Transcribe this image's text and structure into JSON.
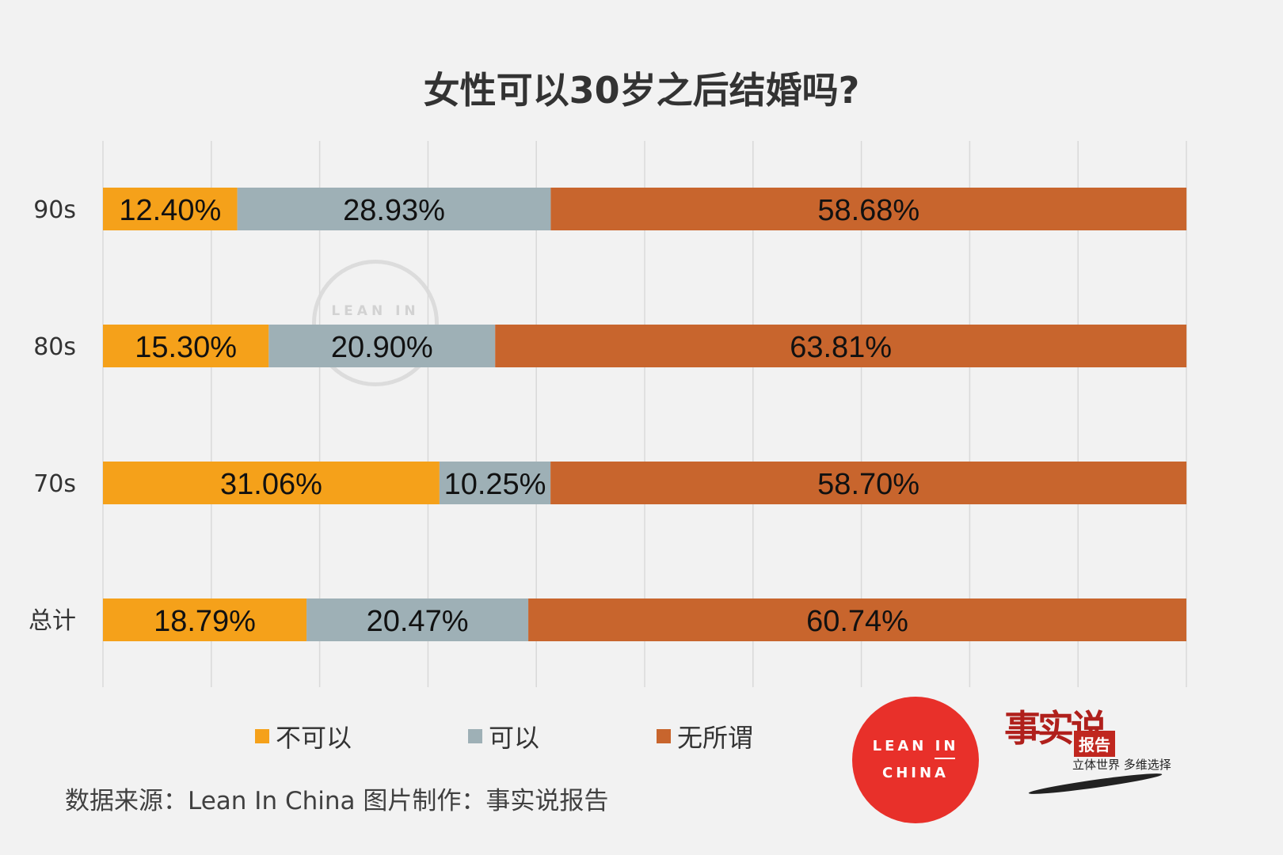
{
  "chart_data": {
    "type": "bar",
    "orientation": "horizontal",
    "stacked": true,
    "title": "女性可以30岁之后结婚吗?",
    "categories": [
      "90s",
      "80s",
      "70s",
      "总计"
    ],
    "series": [
      {
        "name": "不可以",
        "color": "#f5a11a",
        "values": [
          12.4,
          15.3,
          31.06,
          18.79
        ],
        "labels": [
          "12.40%",
          "15.30%",
          "31.06%",
          "18.79%"
        ]
      },
      {
        "name": "可以",
        "color": "#9eb0b6",
        "values": [
          28.93,
          20.9,
          10.25,
          20.47
        ],
        "labels": [
          "28.93%",
          "20.90%",
          "10.25%",
          "20.47%"
        ]
      },
      {
        "name": "无所谓",
        "color": "#c8652d",
        "values": [
          58.68,
          63.81,
          58.7,
          60.74
        ],
        "labels": [
          "58.68%",
          "63.81%",
          "58.70%",
          "60.74%"
        ]
      }
    ],
    "xlim": [
      0,
      100
    ],
    "grid": true,
    "legend": "bottom"
  },
  "legend": {
    "items": [
      "不可以",
      "可以",
      "无所谓"
    ]
  },
  "source_text": "数据来源：Lean In China  图片制作：事实说报告",
  "logo": {
    "line1": "LEAN IN",
    "line2": "CHINA"
  },
  "brand": {
    "chars": "事实说",
    "badge": "报告",
    "slogan": "立体世界 多维选择"
  }
}
